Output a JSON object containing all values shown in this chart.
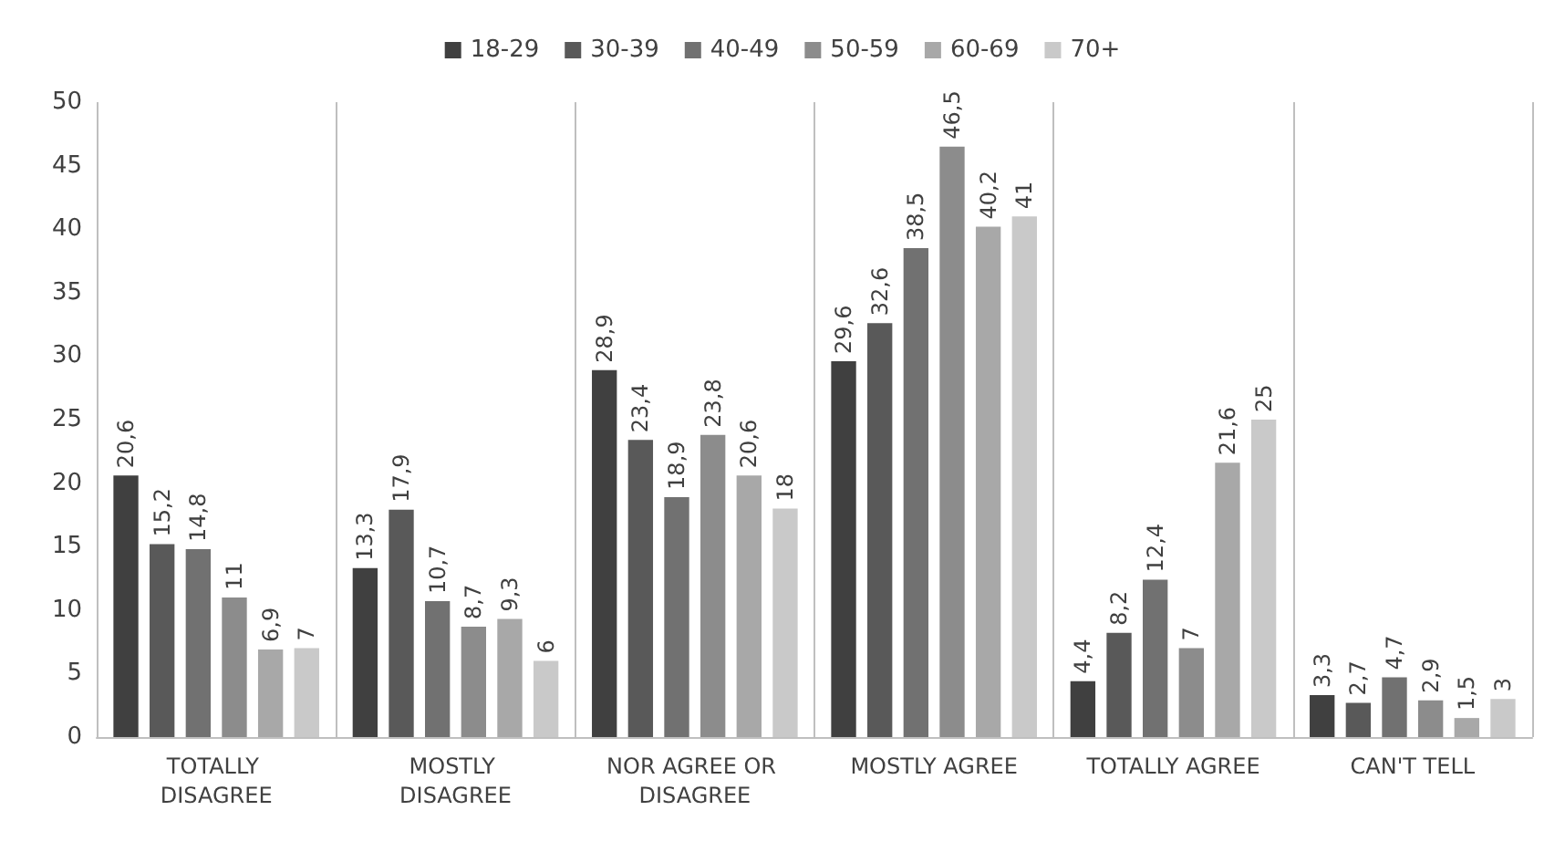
{
  "chart_data": {
    "type": "bar",
    "categories": [
      "TOTALLY DISAGREE",
      "MOSTLY DISAGREE",
      "NOR AGREE OR DISAGREE",
      "MOSTLY AGREE",
      "TOTALLY AGREE",
      "CAN'T TELL"
    ],
    "series": [
      {
        "name": "18-29",
        "color": "#404040",
        "values": [
          20.6,
          13.3,
          28.9,
          29.6,
          4.4,
          3.3
        ],
        "value_labels": [
          "20,6",
          "13,3",
          "28,9",
          "29,6",
          "4,4",
          "3,3"
        ]
      },
      {
        "name": "30-39",
        "color": "#595959",
        "values": [
          15.2,
          17.9,
          23.4,
          32.6,
          8.2,
          2.7
        ],
        "value_labels": [
          "15,2",
          "17,9",
          "23,4",
          "32,6",
          "8,2",
          "2,7"
        ]
      },
      {
        "name": "40-49",
        "color": "#717171",
        "values": [
          14.8,
          10.7,
          18.9,
          38.5,
          12.4,
          4.7
        ],
        "value_labels": [
          "14,8",
          "10,7",
          "18,9",
          "38,5",
          "12,4",
          "4,7"
        ]
      },
      {
        "name": "50-59",
        "color": "#8c8c8c",
        "values": [
          11,
          8.7,
          23.8,
          46.5,
          7,
          2.9
        ],
        "value_labels": [
          "11",
          "8,7",
          "23,8",
          "46,5",
          "7",
          "2,9"
        ]
      },
      {
        "name": "60-69",
        "color": "#a8a8a8",
        "values": [
          6.9,
          9.3,
          20.6,
          40.2,
          21.6,
          1.5
        ],
        "value_labels": [
          "6,9",
          "9,3",
          "20,6",
          "40,2",
          "21,6",
          "1,5"
        ]
      },
      {
        "name": "70+",
        "color": "#c9c9c9",
        "values": [
          7,
          6,
          18,
          41,
          25,
          3
        ],
        "value_labels": [
          "7",
          "6",
          "18",
          "41",
          "25",
          "3"
        ]
      }
    ],
    "ylim": [
      0,
      50
    ],
    "yticks": [
      0,
      5,
      10,
      15,
      20,
      25,
      30,
      35,
      40,
      45,
      50
    ],
    "grid": "x",
    "legend": "top"
  }
}
